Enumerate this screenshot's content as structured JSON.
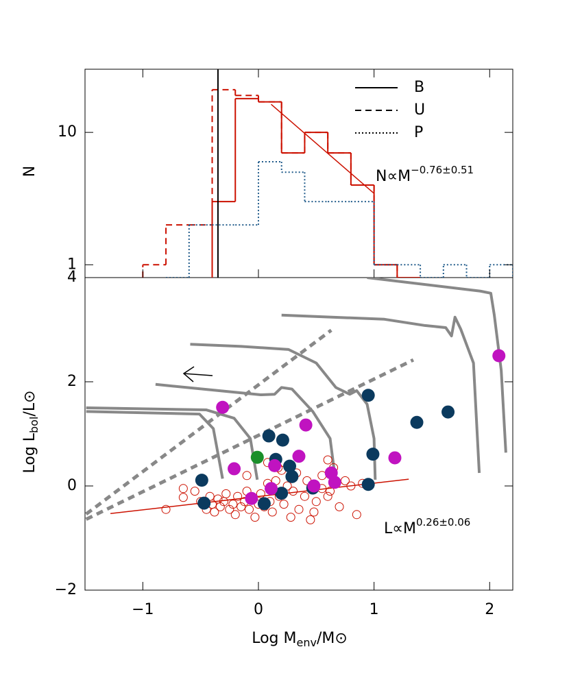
{
  "chart_data": [
    {
      "type": "histogram",
      "y_label": "N",
      "xlim": [
        -1.5,
        2.2
      ],
      "ylim": [
        0.8,
        30
      ],
      "log_y": true,
      "yticks": [
        1,
        10
      ],
      "legend_position": "upper right",
      "legend_line_color": "#000000",
      "series": [
        {
          "name": "B",
          "color": "#cc1100",
          "line_style": "solid",
          "bins": [
            -0.4,
            -0.2,
            0,
            0.2,
            0.4,
            0.6,
            0.8,
            1.0,
            1.2,
            1.4
          ],
          "counts": [
            3,
            18,
            17,
            7,
            10,
            7,
            4,
            1,
            0
          ]
        },
        {
          "name": "U",
          "color": "#cc1100",
          "line_style": "dashed",
          "bins": [
            -1.0,
            -0.8,
            -0.6,
            -0.4,
            -0.2,
            0,
            0.2,
            0.4,
            0.6,
            0.8,
            1.0,
            1.2
          ],
          "counts": [
            1,
            2,
            2,
            21,
            19,
            17,
            7,
            10,
            7,
            4,
            1
          ]
        },
        {
          "name": "P",
          "color": "#1f5a8a",
          "line_style": "dotted",
          "bins": [
            -0.8,
            -0.6,
            -0.4,
            -0.2,
            0,
            0.2,
            0.4,
            0.6,
            0.8,
            1.0,
            1.2,
            1.4,
            1.6,
            1.8,
            2.0,
            2.2
          ],
          "counts": [
            0,
            2,
            2,
            2,
            6,
            5,
            3,
            3,
            3,
            1,
            1,
            0,
            1,
            0,
            1
          ]
        }
      ],
      "vline": -0.35,
      "fit": {
        "color": "#cc1100",
        "x": [
          0.11,
          1.0
        ],
        "y": [
          16.3,
          3.46
        ]
      },
      "annotation": [
        "N∝M",
        "−0.76±0.51"
      ]
    },
    {
      "type": "scatter",
      "x_label": [
        "Log M",
        "env",
        "/M",
        "⊙"
      ],
      "y_label": [
        "Log L",
        "bol",
        "/L",
        "⊙"
      ],
      "xlim": [
        -1.5,
        2.2
      ],
      "ylim": [
        -2,
        4
      ],
      "xticks": [
        {
          "value": -1,
          "label": "−1"
        },
        0,
        1,
        2
      ],
      "yticks": [
        {
          "value": -2,
          "label": "−2"
        },
        0,
        2,
        4
      ],
      "tracks": {
        "color": "#888888",
        "lines": [
          {
            "x": [
              -1.49,
              -0.51,
              -0.39,
              -0.31
            ],
            "y": [
              1.43,
              1.38,
              1.1,
              0.14
            ]
          },
          {
            "x": [
              -1.49,
              -0.45,
              -0.21,
              -0.07,
              -0.01
            ],
            "y": [
              1.5,
              1.46,
              1.3,
              0.91,
              0.12
            ]
          },
          {
            "x": [
              -0.89,
              0.02,
              0.14,
              0.2,
              0.29,
              0.47,
              0.62,
              0.67
            ],
            "y": [
              1.95,
              1.75,
              1.76,
              1.89,
              1.86,
              1.43,
              0.91,
              0.05
            ]
          },
          {
            "x": [
              -0.59,
              -0.15,
              0.26,
              0.5,
              0.67,
              0.79,
              0.85,
              0.94,
              1.0,
              1.01
            ],
            "y": [
              2.72,
              2.68,
              2.62,
              2.36,
              1.89,
              1.76,
              1.83,
              1.57,
              0.91,
              0.12
            ]
          },
          {
            "x": [
              0.2,
              1.09,
              1.44,
              1.62,
              1.67,
              1.7,
              1.75,
              1.86,
              1.91
            ],
            "y": [
              3.28,
              3.2,
              3.08,
              3.04,
              2.88,
              3.24,
              3.01,
              2.36,
              0.25
            ]
          },
          {
            "x": [
              0.94,
              1.92,
              2.01,
              2.04,
              2.1,
              2.14
            ],
            "y": [
              4.0,
              3.74,
              3.7,
              3.28,
              2.22,
              0.64
            ]
          }
        ]
      },
      "guides": {
        "color": "#888888",
        "lines": [
          {
            "x": [
              -1.49,
              0.63
            ],
            "y": [
              -0.54,
              2.99
            ]
          },
          {
            "x": [
              -1.49,
              1.34
            ],
            "y": [
              -0.64,
              2.42
            ]
          }
        ]
      },
      "series": [
        {
          "color": "#cc1100",
          "marker": "open",
          "x": [
            -0.65,
            -0.55,
            -0.5,
            -0.45,
            -0.42,
            -0.4,
            -0.38,
            -0.35,
            -0.33,
            -0.3,
            -0.28,
            -0.25,
            -0.22,
            -0.2,
            -0.18,
            -0.15,
            -0.12,
            -0.1,
            -0.08,
            -0.05,
            -0.03,
            0,
            0.02,
            0.05,
            0.08,
            0.1,
            0.12,
            0.15,
            0.18,
            0.2,
            0.22,
            0.25,
            0.28,
            0.3,
            0.33,
            0.35,
            0.4,
            0.45,
            0.5,
            0.55,
            0.6,
            0.62,
            0.65,
            0.7,
            0.75,
            0.8,
            0.85,
            0.9,
            -0.8,
            -0.65,
            0.42,
            0.48,
            0.6,
            0.08,
            -0.1,
            0.3,
            0.17,
            0.55
          ],
          "y": [
            -0.05,
            -0.1,
            -0.3,
            -0.45,
            -0.2,
            -0.35,
            -0.5,
            -0.25,
            -0.4,
            -0.3,
            -0.15,
            -0.45,
            -0.35,
            -0.55,
            -0.2,
            -0.4,
            -0.3,
            -0.1,
            -0.45,
            -0.25,
            -0.6,
            -0.35,
            -0.15,
            -0.4,
            0.05,
            -0.3,
            -0.5,
            0.1,
            -0.2,
            0.3,
            -0.35,
            0.0,
            -0.6,
            -0.1,
            0.25,
            -0.45,
            -0.2,
            -0.65,
            -0.3,
            0.2,
            0.5,
            -0.1,
            0.35,
            -0.4,
            0.1,
            0.0,
            -0.55,
            0.05,
            -0.45,
            -0.22,
            0.1,
            -0.5,
            -0.2,
            0.45,
            0.2,
            0.2,
            0.35,
            -0.05
          ]
        },
        {
          "color": "#0b3a5e",
          "marker": "filled",
          "x": [
            -0.49,
            -0.47,
            0.05,
            0.09,
            0.21,
            0.15,
            0.27,
            0.29,
            0.2,
            0.47,
            0.95,
            0.99,
            0.95,
            1.37,
            1.64
          ],
          "y": [
            0.11,
            -0.33,
            -0.34,
            0.96,
            0.88,
            0.51,
            0.38,
            0.18,
            -0.14,
            -0.04,
            1.74,
            0.61,
            0.03,
            1.22,
            1.42
          ]
        },
        {
          "color": "#c013c0",
          "marker": "filled",
          "x": [
            -0.31,
            -0.21,
            0.41,
            0.35,
            0.14,
            -0.06,
            0.11,
            0.48,
            0.63,
            0.66,
            1.18,
            2.08
          ],
          "y": [
            1.51,
            0.33,
            1.17,
            0.57,
            0.39,
            -0.24,
            -0.05,
            0.0,
            0.25,
            0.07,
            0.54,
            2.5
          ]
        },
        {
          "color": "#1a8f2a",
          "marker": "filled",
          "x": [
            -0.01
          ],
          "y": [
            0.55
          ]
        }
      ],
      "fit": {
        "color": "#cc1100",
        "x": [
          -1.28,
          1.3
        ],
        "y": [
          -0.53,
          0.13
        ]
      },
      "annotation": [
        "L∝M",
        "0.26±0.06"
      ]
    }
  ]
}
